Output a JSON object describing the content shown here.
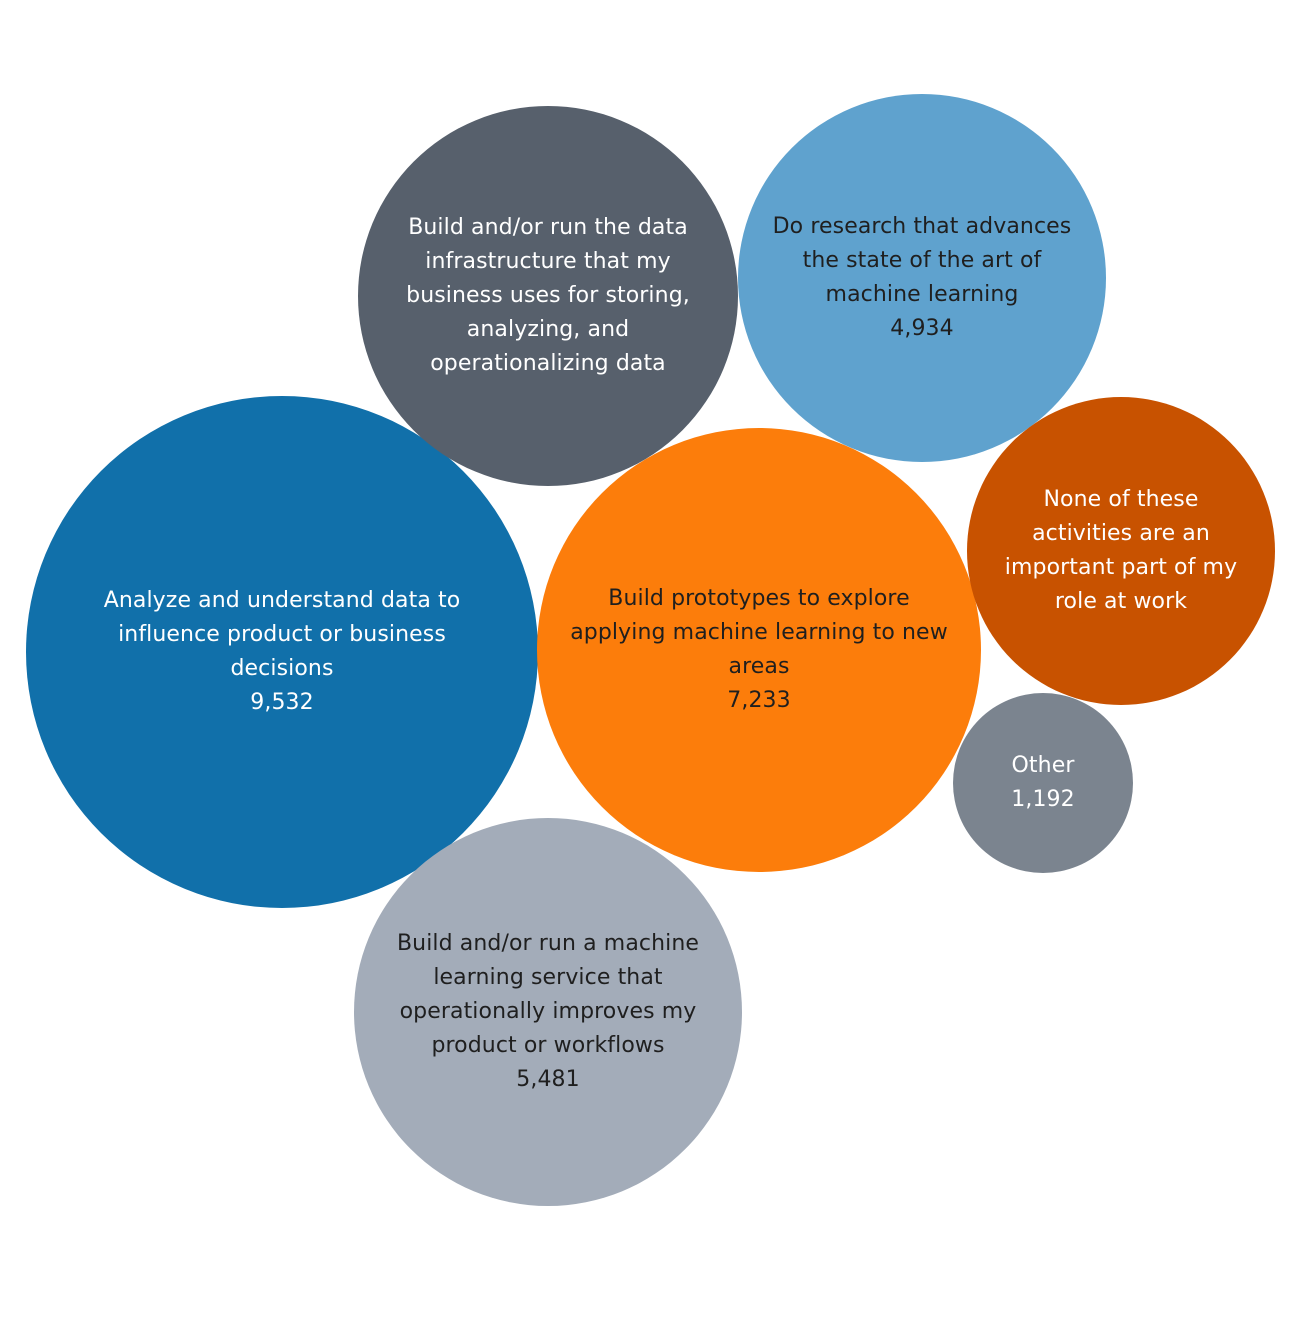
{
  "chart_data": {
    "type": "bubble",
    "title": "",
    "value_label": "count",
    "bubbles": [
      {
        "id": "analyze",
        "lines": [
          "Analyze and understand data to",
          "influence product or business",
          "decisions"
        ],
        "label": "Analyze and understand data to influence product or business decisions",
        "value": 9532,
        "value_text": "9,532",
        "color": "#1170aa",
        "text_color": "#ffffff"
      },
      {
        "id": "prototypes",
        "lines": [
          "Build prototypes to explore",
          "applying machine learning to new",
          "areas"
        ],
        "label": "Build prototypes to explore applying machine learning to new areas",
        "value": 7233,
        "value_text": "7,233",
        "color": "#fc7d0b",
        "text_color": "#1f1f1f"
      },
      {
        "id": "ml-service",
        "lines": [
          "Build and/or run a machine",
          "learning service that",
          "operationally improves my",
          "product or workflows"
        ],
        "label": "Build and/or run a machine learning service that operationally improves my product or workflows",
        "value": 5481,
        "value_text": "5,481",
        "color": "#a3acb9",
        "text_color": "#1f1f1f"
      },
      {
        "id": "infrastructure",
        "lines": [
          "Build and/or run the data",
          "infrastructure that my",
          "business uses for storing,",
          "analyzing, and",
          "operationalizing data"
        ],
        "label": "Build and/or run the data infrastructure that my business uses for storing, analyzing, and operationalizing data",
        "value": null,
        "value_text": "",
        "color": "#57606c",
        "text_color": "#ffffff"
      },
      {
        "id": "research",
        "lines": [
          "Do research that advances",
          "the state of the art of",
          "machine learning"
        ],
        "label": "Do research that advances the state of the art of machine learning",
        "value": 4934,
        "value_text": "4,934",
        "color": "#5fa2ce",
        "text_color": "#1f1f1f"
      },
      {
        "id": "none",
        "lines": [
          "None of these",
          "activities are an",
          "important part of my",
          "role at work"
        ],
        "label": "None of these activities are an important part of my role at work",
        "value": null,
        "value_text": "",
        "color": "#c85200",
        "text_color": "#ffffff"
      },
      {
        "id": "other",
        "lines": [
          "Other"
        ],
        "label": "Other",
        "value": 1192,
        "value_text": "1,192",
        "color": "#7b848f",
        "text_color": "#ffffff"
      }
    ]
  }
}
